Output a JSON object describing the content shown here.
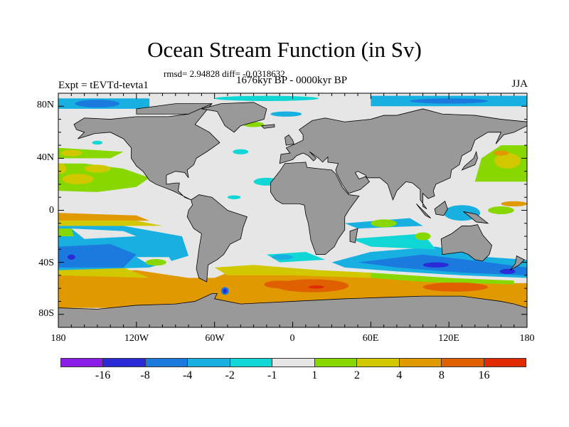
{
  "title": "Ocean Stream Function (in Sv)",
  "stats": "rmsd= 2.94828 diff= -0.0318632",
  "period": "1676kyr BP - 0000kyr BP",
  "experiment": "Expt = tEVTd-tevta1",
  "season": "JJA",
  "lat_ticks": [
    "80N",
    "40N",
    "0",
    "40S",
    "80S"
  ],
  "lon_ticks": [
    "180",
    "120W",
    "60W",
    "0",
    "60E",
    "120E",
    "180"
  ],
  "colorbar": {
    "labels": [
      "-16",
      "-8",
      "-4",
      "-2",
      "-1",
      "1",
      "2",
      "4",
      "8",
      "16"
    ],
    "colors": [
      "#8a1ee6",
      "#2a2ad6",
      "#1a7ade",
      "#18b0e0",
      "#10d6d6",
      "#e6e6e6",
      "#88d800",
      "#d2c800",
      "#e09a00",
      "#e06000",
      "#e02a00"
    ]
  },
  "colors": {
    "land": "#999999",
    "ocean_neutral": "#e6e6e6"
  }
}
